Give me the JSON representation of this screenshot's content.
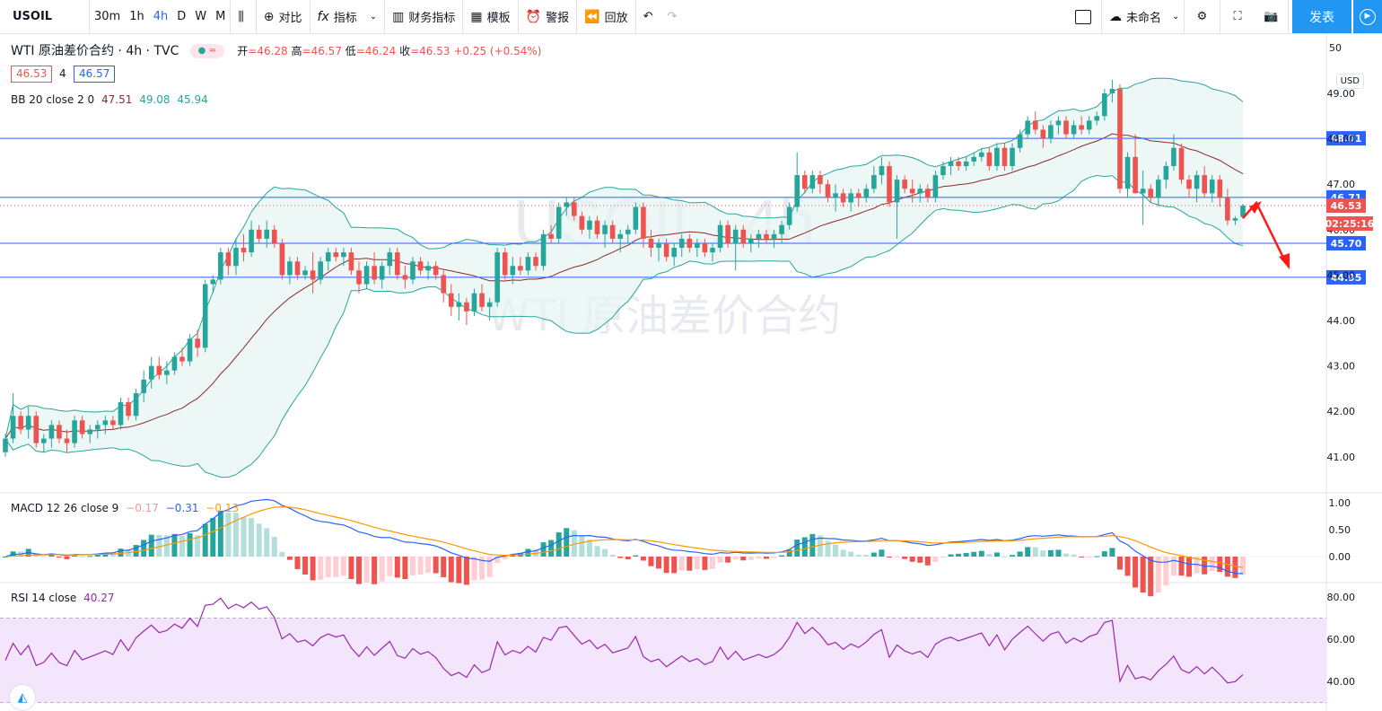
{
  "toolbar": {
    "symbol": "USOIL",
    "intervals": [
      "30m",
      "1h",
      "4h",
      "D",
      "W",
      "M"
    ],
    "active_interval": "4h",
    "compare": "对比",
    "indicators": "指标",
    "financials": "财务指标",
    "templates": "模板",
    "alert": "警报",
    "replay": "回放",
    "layout_name": "未命名",
    "publish": "发表"
  },
  "legend": {
    "title": "WTI 原油差价合约 · 4h · TVC",
    "open_label": "开",
    "open": "=46.28",
    "high_label": "高",
    "high": "=46.57",
    "low_label": "低",
    "low": "=46.24",
    "close_label": "收",
    "close": "=46.53",
    "change": "+0.25 (+0.54%)",
    "bid": "46.53",
    "spread": "4",
    "ask": "46.57",
    "bb_label": "BB 20 close 2 0",
    "bb_mid": "47.51",
    "bb_up": "49.08",
    "bb_low": "45.94"
  },
  "macd": {
    "label": "MACD 12 26 close 9",
    "hist": "−0.17",
    "macd": "−0.31",
    "signal": "−0.13"
  },
  "rsi": {
    "label": "RSI 14 close",
    "value": "40.27"
  },
  "watermark": {
    "symbol": "USOIL, 4h",
    "name": "WTI 原油差价合约"
  },
  "price_axis": {
    "currency": "USD",
    "labels": [
      "49.00",
      "48.00",
      "47.00",
      "46.00",
      "45.00",
      "44.00",
      "43.00",
      "42.00",
      "41.00"
    ],
    "partial_top": "50"
  },
  "macd_axis": {
    "labels": [
      "1.00",
      "0.50",
      "0.00"
    ]
  },
  "rsi_axis": {
    "labels": [
      "80.00",
      "60.00",
      "40.00"
    ]
  },
  "levels": [
    {
      "price": 48.01,
      "label": "48.01"
    },
    {
      "price": 46.71,
      "label": "46.71"
    },
    {
      "price": 45.7,
      "label": "45.70"
    },
    {
      "price": 44.95,
      "label": "44.95"
    }
  ],
  "current_price": {
    "value": "46.53",
    "countdown": "02:25:16"
  },
  "colors": {
    "up": "#26a69a",
    "down": "#ef5350",
    "level": "#2962ff",
    "bb": "#26a69a",
    "mid": "#8b2c2c",
    "accent": "#2196f3",
    "rsi_bg": "#f3e5fb",
    "rsi_line": "#9c27b0"
  },
  "chart_data": {
    "type": "candlestick",
    "bb_fill": true,
    "candles": [
      [
        41.1,
        41.5,
        41.0,
        41.4
      ],
      [
        41.4,
        42.4,
        41.3,
        41.9
      ],
      [
        41.9,
        42.0,
        41.5,
        41.6
      ],
      [
        41.6,
        42.1,
        41.4,
        41.9
      ],
      [
        41.9,
        42.0,
        41.2,
        41.3
      ],
      [
        41.3,
        41.5,
        41.1,
        41.4
      ],
      [
        41.4,
        41.8,
        41.2,
        41.7
      ],
      [
        41.7,
        41.8,
        41.3,
        41.4
      ],
      [
        41.4,
        41.6,
        41.1,
        41.3
      ],
      [
        41.3,
        41.9,
        41.2,
        41.8
      ],
      [
        41.8,
        41.9,
        41.4,
        41.5
      ],
      [
        41.5,
        41.7,
        41.3,
        41.6
      ],
      [
        41.6,
        41.8,
        41.4,
        41.7
      ],
      [
        41.7,
        41.9,
        41.5,
        41.8
      ],
      [
        41.8,
        41.9,
        41.6,
        41.7
      ],
      [
        41.7,
        42.3,
        41.6,
        42.2
      ],
      [
        42.2,
        42.3,
        41.8,
        41.9
      ],
      [
        41.9,
        42.5,
        41.8,
        42.4
      ],
      [
        42.4,
        42.9,
        42.2,
        42.7
      ],
      [
        42.7,
        43.2,
        42.5,
        43.0
      ],
      [
        43.0,
        43.2,
        42.7,
        42.8
      ],
      [
        42.8,
        43.1,
        42.6,
        42.9
      ],
      [
        42.9,
        43.3,
        42.8,
        43.2
      ],
      [
        43.2,
        43.4,
        43.0,
        43.1
      ],
      [
        43.1,
        43.7,
        43.0,
        43.6
      ],
      [
        43.6,
        43.8,
        43.2,
        43.4
      ],
      [
        43.4,
        44.9,
        43.3,
        44.8
      ],
      [
        44.8,
        45.0,
        44.6,
        44.9
      ],
      [
        44.9,
        45.6,
        44.8,
        45.5
      ],
      [
        45.5,
        45.6,
        45.0,
        45.2
      ],
      [
        45.2,
        45.8,
        45.0,
        45.6
      ],
      [
        45.6,
        45.9,
        45.3,
        45.5
      ],
      [
        45.5,
        46.2,
        45.4,
        46.0
      ],
      [
        46.0,
        46.1,
        45.7,
        45.8
      ],
      [
        45.8,
        46.2,
        45.6,
        46.0
      ],
      [
        46.0,
        46.1,
        45.6,
        45.7
      ],
      [
        45.7,
        45.8,
        44.9,
        45.0
      ],
      [
        45.0,
        45.4,
        44.8,
        45.3
      ],
      [
        45.3,
        45.4,
        44.9,
        45.0
      ],
      [
        45.0,
        45.2,
        44.9,
        45.1
      ],
      [
        45.1,
        45.5,
        44.6,
        44.9
      ],
      [
        44.9,
        45.4,
        44.8,
        45.3
      ],
      [
        45.3,
        45.6,
        45.1,
        45.5
      ],
      [
        45.5,
        45.6,
        45.3,
        45.4
      ],
      [
        45.4,
        45.6,
        45.2,
        45.5
      ],
      [
        45.5,
        45.6,
        45.0,
        45.1
      ],
      [
        45.1,
        45.3,
        44.6,
        44.8
      ],
      [
        44.8,
        45.3,
        44.7,
        45.2
      ],
      [
        45.2,
        45.5,
        44.8,
        44.9
      ],
      [
        44.9,
        45.3,
        44.7,
        45.2
      ],
      [
        45.2,
        45.6,
        45.0,
        45.5
      ],
      [
        45.5,
        45.6,
        44.9,
        45.0
      ],
      [
        45.0,
        45.2,
        44.7,
        44.9
      ],
      [
        44.9,
        45.4,
        44.8,
        45.3
      ],
      [
        45.3,
        45.4,
        45.0,
        45.1
      ],
      [
        45.1,
        45.3,
        44.9,
        45.2
      ],
      [
        45.2,
        45.3,
        44.9,
        45.0
      ],
      [
        45.0,
        45.1,
        44.4,
        44.6
      ],
      [
        44.6,
        44.8,
        44.1,
        44.3
      ],
      [
        44.3,
        44.6,
        44.0,
        44.4
      ],
      [
        44.4,
        44.5,
        43.9,
        44.2
      ],
      [
        44.2,
        44.7,
        44.1,
        44.6
      ],
      [
        44.6,
        44.8,
        44.2,
        44.3
      ],
      [
        44.3,
        44.5,
        44.0,
        44.4
      ],
      [
        44.4,
        45.6,
        44.3,
        45.5
      ],
      [
        45.5,
        45.6,
        44.9,
        45.0
      ],
      [
        45.0,
        45.4,
        44.8,
        45.2
      ],
      [
        45.2,
        45.4,
        45.0,
        45.1
      ],
      [
        45.1,
        45.5,
        45.0,
        45.4
      ],
      [
        45.4,
        45.5,
        45.1,
        45.2
      ],
      [
        45.2,
        46.0,
        45.1,
        45.9
      ],
      [
        45.9,
        46.1,
        45.7,
        45.8
      ],
      [
        45.8,
        46.6,
        45.7,
        46.5
      ],
      [
        46.5,
        46.7,
        46.3,
        46.6
      ],
      [
        46.6,
        46.7,
        46.2,
        46.3
      ],
      [
        46.3,
        46.4,
        45.9,
        46.0
      ],
      [
        46.0,
        46.3,
        45.8,
        46.2
      ],
      [
        46.2,
        46.3,
        45.8,
        45.9
      ],
      [
        45.9,
        46.2,
        45.6,
        46.1
      ],
      [
        46.1,
        46.2,
        45.7,
        45.8
      ],
      [
        45.8,
        46.0,
        45.5,
        45.9
      ],
      [
        45.9,
        46.1,
        45.7,
        46.0
      ],
      [
        46.0,
        46.6,
        45.9,
        46.5
      ],
      [
        46.5,
        46.6,
        45.6,
        45.8
      ],
      [
        45.8,
        46.0,
        45.4,
        45.6
      ],
      [
        45.6,
        45.8,
        45.3,
        45.7
      ],
      [
        45.7,
        45.8,
        45.3,
        45.4
      ],
      [
        45.4,
        45.7,
        45.2,
        45.6
      ],
      [
        45.6,
        45.9,
        45.4,
        45.8
      ],
      [
        45.8,
        45.9,
        45.5,
        45.6
      ],
      [
        45.6,
        45.8,
        45.4,
        45.7
      ],
      [
        45.7,
        45.8,
        45.4,
        45.5
      ],
      [
        45.5,
        45.7,
        45.3,
        45.6
      ],
      [
        45.6,
        46.2,
        45.5,
        46.1
      ],
      [
        46.1,
        46.2,
        45.6,
        45.7
      ],
      [
        45.7,
        46.1,
        45.1,
        46.0
      ],
      [
        46.0,
        46.1,
        45.6,
        45.7
      ],
      [
        45.7,
        45.9,
        45.5,
        45.8
      ],
      [
        45.8,
        46.0,
        45.6,
        45.9
      ],
      [
        45.9,
        46.0,
        45.7,
        45.8
      ],
      [
        45.8,
        46.0,
        45.6,
        45.9
      ],
      [
        45.9,
        46.2,
        45.7,
        46.1
      ],
      [
        46.1,
        46.6,
        46.0,
        46.5
      ],
      [
        46.5,
        47.7,
        46.4,
        47.2
      ],
      [
        47.2,
        47.3,
        46.8,
        46.9
      ],
      [
        46.9,
        47.3,
        46.8,
        47.2
      ],
      [
        47.2,
        47.3,
        46.8,
        47.0
      ],
      [
        47.0,
        47.1,
        46.6,
        46.7
      ],
      [
        46.7,
        47.0,
        46.4,
        46.8
      ],
      [
        46.8,
        46.9,
        46.5,
        46.6
      ],
      [
        46.6,
        46.9,
        46.4,
        46.8
      ],
      [
        46.8,
        46.9,
        46.5,
        46.7
      ],
      [
        46.7,
        47.0,
        46.6,
        46.9
      ],
      [
        46.9,
        47.4,
        46.8,
        47.2
      ],
      [
        47.2,
        47.6,
        47.0,
        47.4
      ],
      [
        47.4,
        47.5,
        46.5,
        46.6
      ],
      [
        46.6,
        47.2,
        45.8,
        47.1
      ],
      [
        47.1,
        47.2,
        46.8,
        46.9
      ],
      [
        46.9,
        47.1,
        46.6,
        46.8
      ],
      [
        46.8,
        47.0,
        46.6,
        46.9
      ],
      [
        46.9,
        47.0,
        46.6,
        46.7
      ],
      [
        46.7,
        47.3,
        46.6,
        47.2
      ],
      [
        47.2,
        47.5,
        47.1,
        47.4
      ],
      [
        47.4,
        47.6,
        47.2,
        47.5
      ],
      [
        47.5,
        47.6,
        47.3,
        47.4
      ],
      [
        47.4,
        47.6,
        47.3,
        47.5
      ],
      [
        47.5,
        47.7,
        47.4,
        47.6
      ],
      [
        47.6,
        47.8,
        47.5,
        47.7
      ],
      [
        47.7,
        47.8,
        47.3,
        47.4
      ],
      [
        47.4,
        47.9,
        47.3,
        47.8
      ],
      [
        47.8,
        47.9,
        47.3,
        47.4
      ],
      [
        47.4,
        47.9,
        47.3,
        47.8
      ],
      [
        47.8,
        48.2,
        47.7,
        48.1
      ],
      [
        48.1,
        48.5,
        48.0,
        48.4
      ],
      [
        48.4,
        48.6,
        48.1,
        48.2
      ],
      [
        48.2,
        48.3,
        47.8,
        48.0
      ],
      [
        48.0,
        48.4,
        47.9,
        48.3
      ],
      [
        48.3,
        48.5,
        48.1,
        48.4
      ],
      [
        48.4,
        48.5,
        48.0,
        48.1
      ],
      [
        48.1,
        48.4,
        48.0,
        48.3
      ],
      [
        48.3,
        48.5,
        48.1,
        48.2
      ],
      [
        48.2,
        48.5,
        48.1,
        48.4
      ],
      [
        48.4,
        48.6,
        48.3,
        48.5
      ],
      [
        48.5,
        49.1,
        48.4,
        49.0
      ],
      [
        49.0,
        49.3,
        48.8,
        49.1
      ],
      [
        49.1,
        49.2,
        46.8,
        46.9
      ],
      [
        46.9,
        47.7,
        46.7,
        47.6
      ],
      [
        47.6,
        48.1,
        46.8,
        46.8
      ],
      [
        46.8,
        47.3,
        46.1,
        46.9
      ],
      [
        46.9,
        47.0,
        46.6,
        46.7
      ],
      [
        46.7,
        47.2,
        46.5,
        47.1
      ],
      [
        47.1,
        47.5,
        46.9,
        47.4
      ],
      [
        47.4,
        48.1,
        47.3,
        47.8
      ],
      [
        47.8,
        47.9,
        47.0,
        47.1
      ],
      [
        47.1,
        47.2,
        46.7,
        46.9
      ],
      [
        46.9,
        47.3,
        46.6,
        47.2
      ],
      [
        47.2,
        47.4,
        46.7,
        46.8
      ],
      [
        46.8,
        47.2,
        46.6,
        47.1
      ],
      [
        47.1,
        47.2,
        46.5,
        46.7
      ],
      [
        46.7,
        46.9,
        46.1,
        46.2
      ],
      [
        46.2,
        46.3,
        46.1,
        46.25
      ],
      [
        46.28,
        46.57,
        46.24,
        46.53
      ]
    ]
  }
}
